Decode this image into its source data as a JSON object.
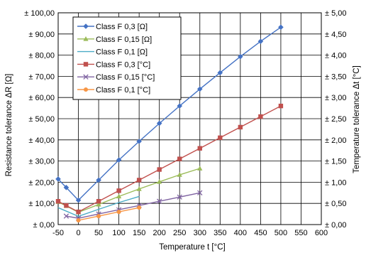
{
  "chart_data": {
    "type": "line",
    "xlabel": "Temperature t [°C]",
    "ylabel_left": "Resistance tolerance ΔR [Ω]",
    "ylabel_right": "Temperature tolerance Δt [°C]",
    "xlim": [
      -50,
      600
    ],
    "ylim_left": [
      0,
      100
    ],
    "ylim_right": [
      0,
      5
    ],
    "grid": true,
    "legend_position": "top-left",
    "x_ticks": [
      "-50",
      "0",
      "50",
      "100",
      "150",
      "200",
      "250",
      "300",
      "350",
      "400",
      "450",
      "500",
      "550",
      "600"
    ],
    "y_left_ticks": [
      "± 0,00",
      "± 10,00",
      "± 20,00",
      "± 30,00",
      "± 40,00",
      "± 50,00",
      "± 60,00",
      "± 70,00",
      "± 80,00",
      "± 90,00",
      "± 100,00"
    ],
    "y_right_ticks": [
      "± 0,00",
      "± 0,50",
      "± 1,00",
      "± 1,50",
      "± 2,00",
      "± 2,50",
      "± 3,00",
      "± 3,50",
      "± 4,00",
      "± 4,50",
      "± 5,00"
    ],
    "series": [
      {
        "name": "Class F 0,3 [Ω]",
        "axis": "left",
        "color": "#4472C4",
        "marker": "diamond",
        "x": [
          -50,
          -30,
          0,
          50,
          100,
          150,
          200,
          250,
          300,
          350,
          400,
          450,
          500
        ],
        "y": [
          21.5,
          17.5,
          11.5,
          21.0,
          30.5,
          39.3,
          47.8,
          56.0,
          64.0,
          71.7,
          79.3,
          86.5,
          93.2
        ]
      },
      {
        "name": "Class F 0,15 [Ω]",
        "axis": "left",
        "color": "#9BBB59",
        "marker": "triangle",
        "x": [
          -50,
          -30,
          0,
          50,
          100,
          150,
          200,
          250,
          300
        ],
        "y": [
          10.7,
          8.8,
          5.8,
          9.5,
          13.3,
          16.8,
          20.2,
          23.5,
          26.5
        ]
      },
      {
        "name": "Class F 0,1 [Ω]",
        "axis": "left",
        "color": "#4BACC6",
        "marker": "none",
        "x": [
          -50,
          0,
          50,
          100,
          150
        ],
        "y": [
          8.0,
          3.9,
          7.2,
          10.4,
          13.3
        ]
      },
      {
        "name": "Class F 0,3 [°C]",
        "axis": "left",
        "color": "#C0504D",
        "marker": "square",
        "x": [
          -50,
          -30,
          0,
          50,
          100,
          150,
          200,
          250,
          300,
          350,
          400,
          450,
          500
        ],
        "y": [
          11.0,
          9.0,
          6.0,
          11.0,
          16.0,
          21.0,
          26.0,
          31.0,
          36.0,
          41.0,
          46.0,
          51.0,
          56.0
        ]
      },
      {
        "name": "Class F 0,15 [°C]",
        "axis": "left",
        "color": "#8064A2",
        "marker": "x",
        "x": [
          -30,
          0,
          50,
          100,
          150,
          200,
          250,
          300
        ],
        "y": [
          4.0,
          3.0,
          5.0,
          7.0,
          9.0,
          11.0,
          13.0,
          15.0
        ]
      },
      {
        "name": "Class F 0,1 [°C]",
        "axis": "left",
        "color": "#F79646",
        "marker": "circle",
        "x": [
          0,
          50,
          100,
          150
        ],
        "y": [
          2.0,
          4.0,
          6.0,
          8.0
        ]
      }
    ]
  }
}
